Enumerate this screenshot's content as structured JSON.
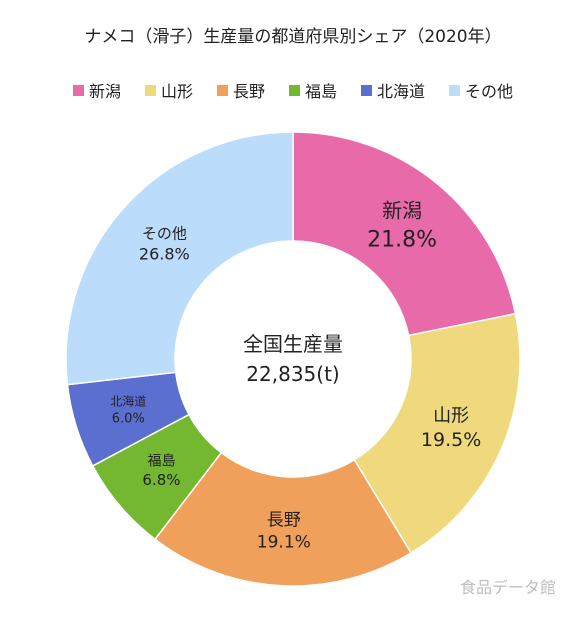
{
  "chart_data": {
    "type": "pie",
    "title": "ナメコ（滑子）生産量の都道府県別シェア（2020年）",
    "center_label": "全国生産量",
    "center_value": "22,835(t)",
    "slices": [
      {
        "name": "新潟",
        "value": 21.8,
        "label": "21.8%",
        "color": "#e86aa9"
      },
      {
        "name": "山形",
        "value": 19.5,
        "label": "19.5%",
        "color": "#f0d97d"
      },
      {
        "name": "長野",
        "value": 19.1,
        "label": "19.1%",
        "color": "#f0a05a"
      },
      {
        "name": "福島",
        "value": 6.8,
        "label": "6.8%",
        "color": "#74b831"
      },
      {
        "name": "北海道",
        "value": 6.0,
        "label": "6.0%",
        "color": "#5b6fd1"
      },
      {
        "name": "その他",
        "value": 26.8,
        "label": "26.8%",
        "color": "#bcdcfb"
      }
    ],
    "legend_position": "top"
  },
  "watermark": "食品データ館"
}
